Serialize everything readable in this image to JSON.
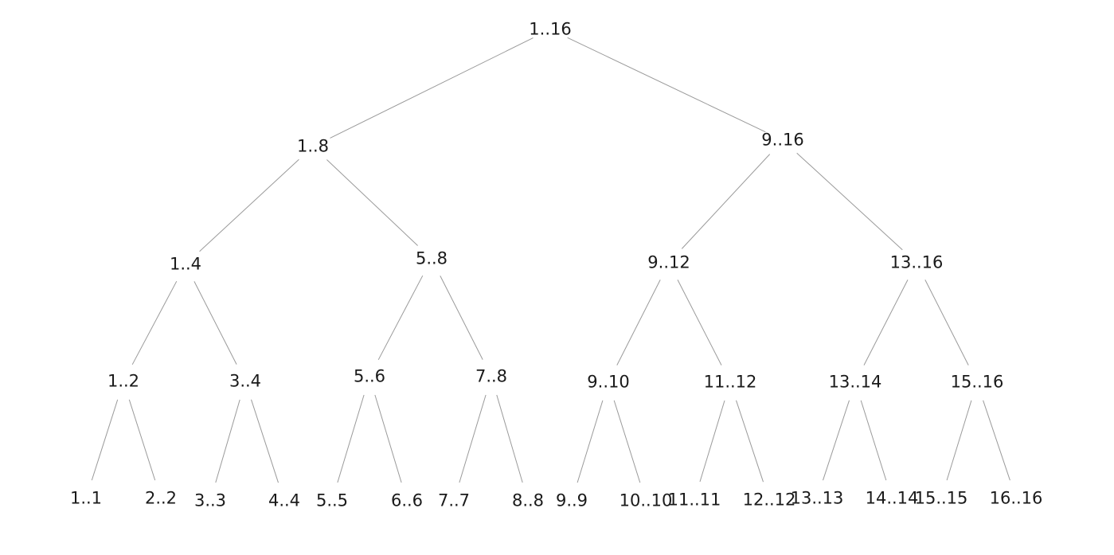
{
  "tree": {
    "nodes": [
      {
        "id": "n1_16",
        "label": "1..16"
      },
      {
        "id": "n1_8",
        "label": "1..8"
      },
      {
        "id": "n9_16",
        "label": "9..16"
      },
      {
        "id": "n1_4",
        "label": "1..4"
      },
      {
        "id": "n5_8",
        "label": "5..8"
      },
      {
        "id": "n9_12",
        "label": "9..12"
      },
      {
        "id": "n13_16",
        "label": "13..16"
      },
      {
        "id": "n1_2",
        "label": "1..2"
      },
      {
        "id": "n3_4",
        "label": "3..4"
      },
      {
        "id": "n5_6",
        "label": "5..6"
      },
      {
        "id": "n7_8",
        "label": "7..8"
      },
      {
        "id": "n9_10",
        "label": "9..10"
      },
      {
        "id": "n11_12",
        "label": "11..12"
      },
      {
        "id": "n13_14",
        "label": "13..14"
      },
      {
        "id": "n15_16",
        "label": "15..16"
      },
      {
        "id": "n1_1",
        "label": "1..1"
      },
      {
        "id": "n2_2",
        "label": "2..2"
      },
      {
        "id": "n3_3",
        "label": "3..3"
      },
      {
        "id": "n4_4",
        "label": "4..4"
      },
      {
        "id": "n5_5",
        "label": "5..5"
      },
      {
        "id": "n6_6",
        "label": "6..6"
      },
      {
        "id": "n7_7",
        "label": "7..7"
      },
      {
        "id": "n8_8",
        "label": "8..8"
      },
      {
        "id": "n9_9",
        "label": "9..9"
      },
      {
        "id": "n10_10",
        "label": "10..10"
      },
      {
        "id": "n11_11",
        "label": "11..11"
      },
      {
        "id": "n12_12",
        "label": "12..12"
      },
      {
        "id": "n13_13",
        "label": "13..13"
      },
      {
        "id": "n14_14",
        "label": "14..14"
      },
      {
        "id": "n15_15",
        "label": "15..15"
      },
      {
        "id": "n16_16",
        "label": "16..16"
      }
    ],
    "edges": [
      {
        "from": "n1_16",
        "to": "n1_8"
      },
      {
        "from": "n1_16",
        "to": "n9_16"
      },
      {
        "from": "n1_8",
        "to": "n1_4"
      },
      {
        "from": "n1_8",
        "to": "n5_8"
      },
      {
        "from": "n9_16",
        "to": "n9_12"
      },
      {
        "from": "n9_16",
        "to": "n13_16"
      },
      {
        "from": "n1_4",
        "to": "n1_2"
      },
      {
        "from": "n1_4",
        "to": "n3_4"
      },
      {
        "from": "n5_8",
        "to": "n5_6"
      },
      {
        "from": "n5_8",
        "to": "n7_8"
      },
      {
        "from": "n9_12",
        "to": "n9_10"
      },
      {
        "from": "n9_12",
        "to": "n11_12"
      },
      {
        "from": "n13_16",
        "to": "n13_14"
      },
      {
        "from": "n13_16",
        "to": "n15_16"
      },
      {
        "from": "n1_2",
        "to": "n1_1"
      },
      {
        "from": "n1_2",
        "to": "n2_2"
      },
      {
        "from": "n3_4",
        "to": "n3_3"
      },
      {
        "from": "n3_4",
        "to": "n4_4"
      },
      {
        "from": "n5_6",
        "to": "n5_5"
      },
      {
        "from": "n5_6",
        "to": "n6_6"
      },
      {
        "from": "n7_8",
        "to": "n7_7"
      },
      {
        "from": "n7_8",
        "to": "n8_8"
      },
      {
        "from": "n9_10",
        "to": "n9_9"
      },
      {
        "from": "n9_10",
        "to": "n10_10"
      },
      {
        "from": "n11_12",
        "to": "n11_11"
      },
      {
        "from": "n11_12",
        "to": "n12_12"
      },
      {
        "from": "n13_14",
        "to": "n13_13"
      },
      {
        "from": "n13_14",
        "to": "n14_14"
      },
      {
        "from": "n15_16",
        "to": "n15_15"
      },
      {
        "from": "n15_16",
        "to": "n16_16"
      }
    ]
  }
}
